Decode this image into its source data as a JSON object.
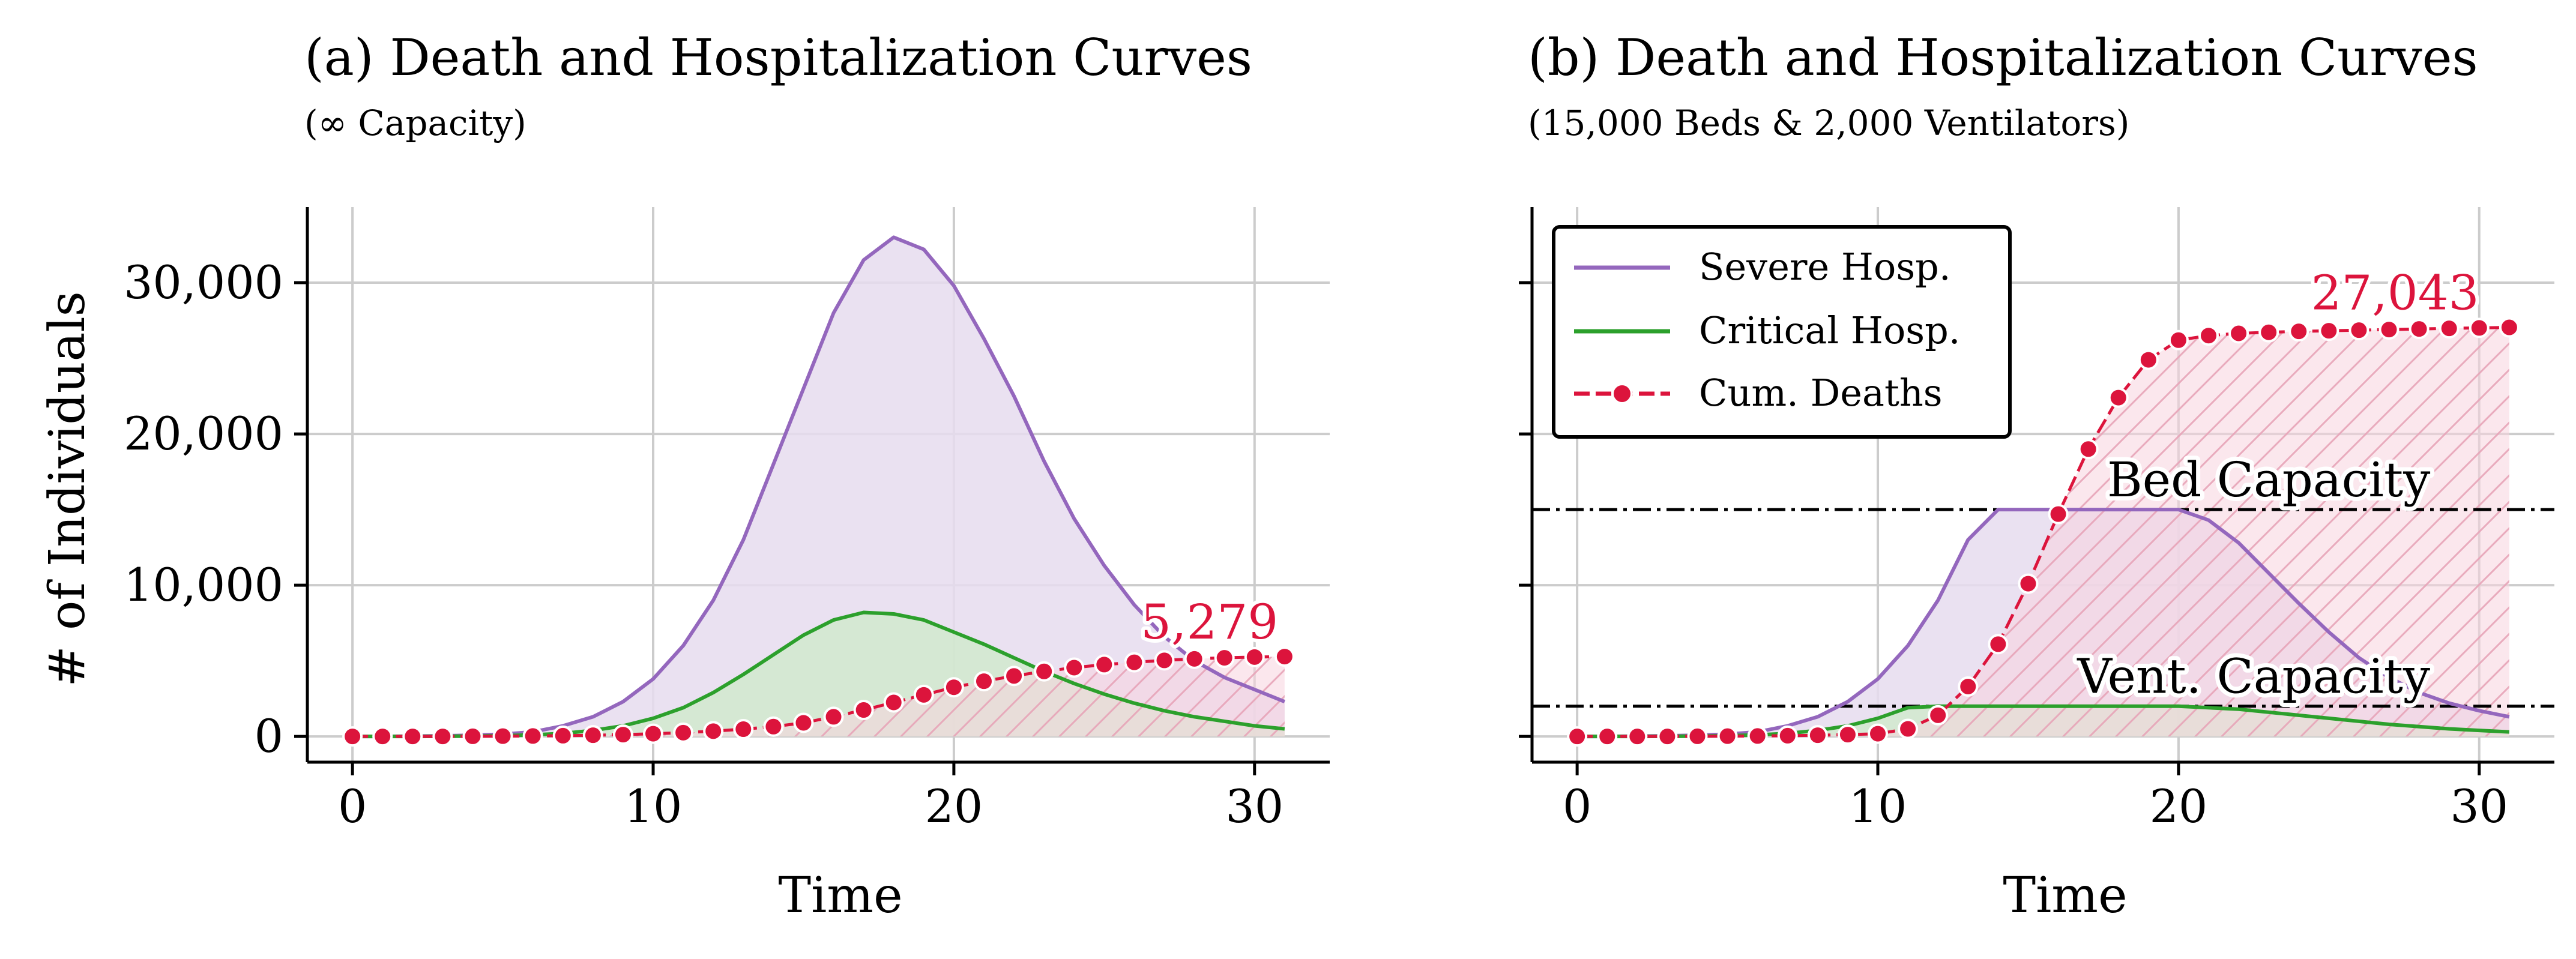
{
  "figure": {
    "ylabel": "# of Individuals",
    "colors": {
      "severe": "#9467bd",
      "severe_fill": "#e6dcef",
      "critical": "#2ca02c",
      "critical_fill": "#cdeac8",
      "deaths": "#dc143c",
      "deaths_fill": "#f8d3de",
      "grid": "#cccccc",
      "capacity": "#000000"
    }
  },
  "chart_data": [
    {
      "type": "line",
      "title": "(a) Death and Hospitalization Curves",
      "subtitle": "(∞ Capacity)",
      "xlabel": "Time",
      "ylabel": "# of Individuals",
      "xlim": [
        -1.5,
        32.5
      ],
      "ylim": [
        -1700,
        35000
      ],
      "xticks": [
        0,
        10,
        20,
        30
      ],
      "yticks": [
        0,
        10000,
        20000,
        30000
      ],
      "ytick_labels": [
        "0",
        "10,000",
        "20,000",
        "30,000"
      ],
      "grid": true,
      "x": [
        0,
        1,
        2,
        3,
        4,
        5,
        6,
        7,
        8,
        9,
        10,
        11,
        12,
        13,
        14,
        15,
        16,
        17,
        18,
        19,
        20,
        21,
        22,
        23,
        24,
        25,
        26,
        27,
        28,
        29,
        30,
        31
      ],
      "series": [
        {
          "name": "Severe Hosp.",
          "values": [
            0,
            0,
            20,
            40,
            80,
            150,
            300,
            700,
            1300,
            2300,
            3800,
            6000,
            9000,
            13000,
            18000,
            23000,
            28000,
            31500,
            33000,
            32200,
            29800,
            26300,
            22500,
            18200,
            14400,
            11300,
            8700,
            6600,
            5000,
            3900,
            3100,
            2300
          ]
        },
        {
          "name": "Critical Hosp.",
          "values": [
            0,
            0,
            0,
            10,
            20,
            50,
            100,
            200,
            400,
            700,
            1200,
            1900,
            2900,
            4100,
            5400,
            6700,
            7700,
            8200,
            8100,
            7700,
            6900,
            6100,
            5200,
            4300,
            3500,
            2800,
            2200,
            1700,
            1300,
            1000,
            700,
            500
          ]
        },
        {
          "name": "Cum. Deaths",
          "values": [
            0,
            0,
            0,
            0,
            10,
            20,
            30,
            50,
            80,
            120,
            180,
            250,
            350,
            480,
            650,
            900,
            1300,
            1750,
            2250,
            2750,
            3250,
            3650,
            4000,
            4300,
            4550,
            4750,
            4900,
            5030,
            5130,
            5200,
            5250,
            5279
          ]
        }
      ],
      "annotations": [
        {
          "text": "5,279",
          "x": 28.5,
          "y": 5279
        }
      ],
      "capacity_lines": []
    },
    {
      "type": "line",
      "title": "(b) Death and Hospitalization Curves",
      "subtitle": "(15,000 Beds & 2,000 Ventilators)",
      "xlabel": "Time",
      "ylabel": "",
      "xlim": [
        -1.5,
        32.5
      ],
      "ylim": [
        -1700,
        35000
      ],
      "xticks": [
        0,
        10,
        20,
        30
      ],
      "yticks": [
        0,
        10000,
        20000,
        30000
      ],
      "ytick_labels": [
        "",
        "",
        "",
        ""
      ],
      "grid": true,
      "x": [
        0,
        1,
        2,
        3,
        4,
        5,
        6,
        7,
        8,
        9,
        10,
        11,
        12,
        13,
        14,
        15,
        16,
        17,
        18,
        19,
        20,
        21,
        22,
        23,
        24,
        25,
        26,
        27,
        28,
        29,
        30,
        31
      ],
      "series": [
        {
          "name": "Severe Hosp.",
          "values": [
            0,
            0,
            20,
            40,
            80,
            150,
            300,
            700,
            1300,
            2300,
            3800,
            6000,
            9000,
            13000,
            15000,
            15000,
            15000,
            15000,
            15000,
            15000,
            15000,
            14300,
            12800,
            10800,
            8800,
            6900,
            5200,
            3900,
            2900,
            2200,
            1700,
            1300
          ]
        },
        {
          "name": "Critical Hosp.",
          "values": [
            0,
            0,
            0,
            10,
            20,
            50,
            100,
            200,
            400,
            700,
            1200,
            1900,
            2000,
            2000,
            2000,
            2000,
            2000,
            2000,
            2000,
            2000,
            2000,
            1900,
            1800,
            1600,
            1400,
            1200,
            1000,
            800,
            650,
            500,
            400,
            300
          ]
        },
        {
          "name": "Cum. Deaths",
          "values": [
            0,
            0,
            0,
            0,
            10,
            20,
            30,
            50,
            80,
            120,
            180,
            500,
            1400,
            3300,
            6100,
            10100,
            14700,
            19000,
            22400,
            24900,
            26200,
            26500,
            26650,
            26720,
            26780,
            26820,
            26860,
            26900,
            26940,
            26980,
            27010,
            27043
          ]
        }
      ],
      "annotations": [
        {
          "text": "27,043",
          "x": 27.2,
          "y": 27043
        }
      ],
      "capacity_lines": [
        {
          "label": "Bed Capacity",
          "y": 15000,
          "label_x": 23
        },
        {
          "label": "Vent. Capacity",
          "y": 2000,
          "label_x": 22.5
        }
      ],
      "legend": {
        "placement": "upper-left",
        "entries": [
          "Severe Hosp.",
          "Critical Hosp.",
          "Cum. Deaths"
        ]
      }
    }
  ]
}
